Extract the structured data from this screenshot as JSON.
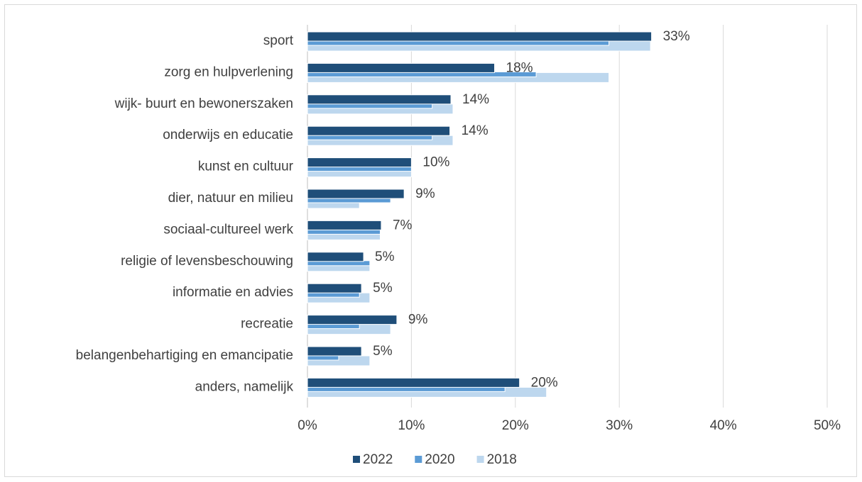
{
  "chart_data": {
    "type": "bar",
    "orientation": "horizontal",
    "categories": [
      "sport",
      "zorg en hulpverlening",
      "wijk- buurt en bewonerszaken",
      "onderwijs en educatie",
      "kunst en cultuur",
      "dier, natuur en milieu",
      "sociaal-cultureel werk",
      "religie of levensbeschouwing",
      "informatie en advies",
      "recreatie",
      "belangenbehartiging en emancipatie",
      "anders, namelijk"
    ],
    "series": [
      {
        "name": "2022",
        "color": "#1f4e79",
        "values": [
          33.1,
          18,
          13.8,
          13.7,
          10,
          9.3,
          7.1,
          5.4,
          5.2,
          8.6,
          5.2,
          20.4
        ],
        "value_labels": [
          "33%",
          "18%",
          "14%",
          "14%",
          "10%",
          "9%",
          "7%",
          "5%",
          "5%",
          "9%",
          "5%",
          "20%"
        ]
      },
      {
        "name": "2020",
        "color": "#5b9bd5",
        "values": [
          29,
          22,
          12,
          12,
          10,
          8,
          7,
          6,
          5,
          5,
          3,
          19
        ]
      },
      {
        "name": "2018",
        "color": "#bdd7ee",
        "values": [
          33,
          29,
          14,
          14,
          10,
          5,
          7,
          6,
          6,
          8,
          6,
          23
        ]
      }
    ],
    "xlim": [
      0,
      50
    ],
    "xticks": [
      {
        "value": 0,
        "label": "0%"
      },
      {
        "value": 10,
        "label": "10%"
      },
      {
        "value": 20,
        "label": "20%"
      },
      {
        "value": 30,
        "label": "30%"
      },
      {
        "value": 40,
        "label": "40%"
      },
      {
        "value": 50,
        "label": "50%"
      }
    ],
    "grid": true,
    "legend": "bottom"
  }
}
